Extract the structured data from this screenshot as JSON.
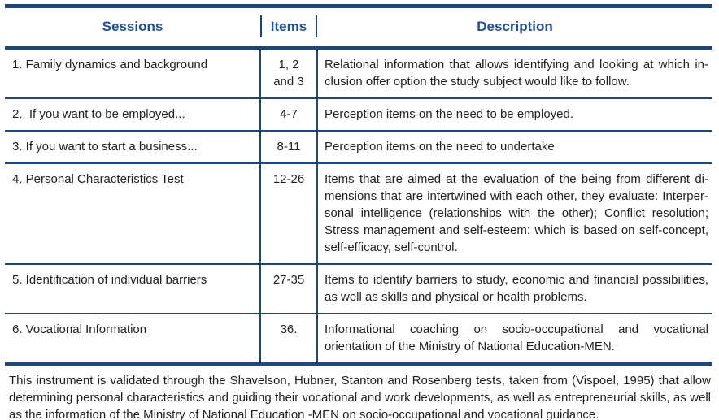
{
  "colors": {
    "table_border": "#1b4677",
    "header_text": "#1f4e9c",
    "body_text": "#1f1f1f"
  },
  "header": {
    "sessions": "Sessions",
    "items": "Items",
    "description": "Description"
  },
  "rows": [
    {
      "session": "1. Family dynamics and background",
      "items": "1, 2\nand 3",
      "description": "Relational information that allows identifying and looking at which in­clusion offer option the study subject would like to follow."
    },
    {
      "session": "2.  If you want to be employed...",
      "items": "4-7",
      "description": "Perception items on the need to be employed."
    },
    {
      "session": "3. If you want to start a business...",
      "items": "8-11",
      "description": "Perception items on the need to undertake"
    },
    {
      "session": "4. Personal Characteristics Test",
      "items": "12-26",
      "description": "Items that are aimed at the evaluation of the being from different di­mensions that are intertwined with each other, they evaluate: Interper­sonal intelligence (relationships with the other); Conflict resolution; Stress management and self-esteem: which is based on self-concept, self-efficacy, self-control."
    },
    {
      "session": "5. Identification of individual barriers",
      "items": "27-35",
      "description": "Items to identify barriers to study, economic and financial possibili­ties, as well as skills and physical or health problems."
    },
    {
      "session": "6. Vocational Information",
      "items": "36.",
      "description": "Informational coaching on socio-occupational and vocational orientation of the Ministry of National Education-MEN."
    }
  ],
  "footnote": "This instrument is validated through the Shavelson, Hubner, Stanton and Rosenberg tests, taken from (Vispoel, 1995) that allow determining personal characteristics and guiding their vocational and work developments, as well as entrepreneurial skills, as well as the information of the Ministry of National Education -MEN on socio-occupational and vocational guidance."
}
